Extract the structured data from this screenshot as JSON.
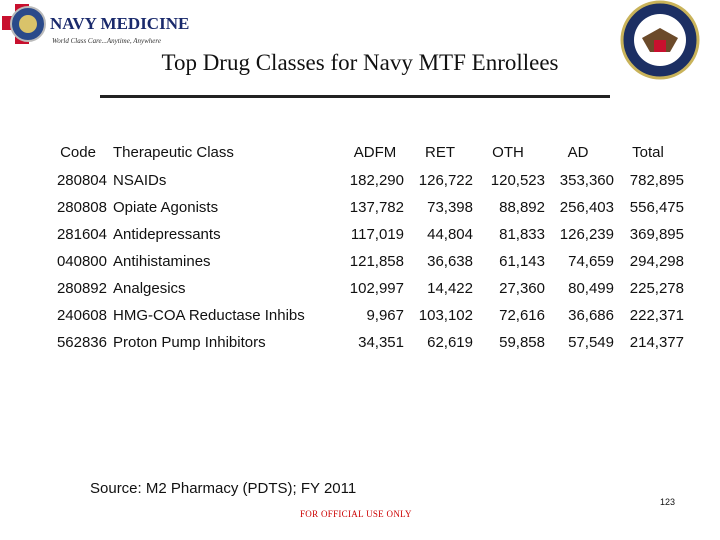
{
  "header": {
    "logo_text": "NAVY MEDICINE",
    "logo_tagline": "World Class Care...Anytime, Anywhere",
    "title": "Top Drug Classes for Navy MTF Enrollees"
  },
  "table": {
    "columns": [
      "Code",
      "Therapeutic Class",
      "ADFM",
      "RET",
      "OTH",
      "AD",
      "Total"
    ],
    "rows": [
      [
        "280804",
        "NSAIDs",
        "182,290",
        "126,722",
        "120,523",
        "353,360",
        "782,895"
      ],
      [
        "280808",
        "Opiate Agonists",
        "137,782",
        "73,398",
        "88,892",
        "256,403",
        "556,475"
      ],
      [
        "281604",
        "Antidepressants",
        "117,019",
        "44,804",
        "81,833",
        "126,239",
        "369,895"
      ],
      [
        "040800",
        "Antihistamines",
        "121,858",
        "36,638",
        "61,143",
        "74,659",
        "294,298"
      ],
      [
        "280892",
        "Analgesics",
        "102,997",
        "14,422",
        "27,360",
        "80,499",
        "225,278"
      ],
      [
        "240608",
        "HMG-COA Reductase Inhibs",
        "9,967",
        "103,102",
        "72,616",
        "36,686",
        "222,371"
      ],
      [
        "562836",
        "Proton Pump Inhibitors",
        "34,351",
        "62,619",
        "59,858",
        "57,549",
        "214,377"
      ]
    ]
  },
  "footer": {
    "source": "Source:  M2 Pharmacy (PDTS); FY 2011",
    "page_number": "123",
    "marking": "FOR OFFICIAL USE ONLY"
  }
}
